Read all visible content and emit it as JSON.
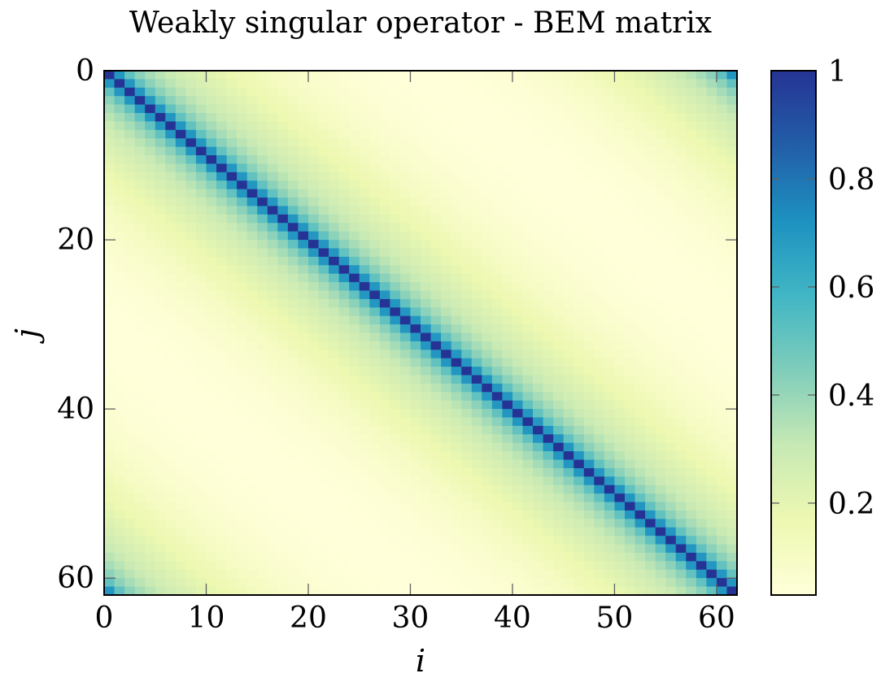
{
  "chart_data": {
    "type": "heatmap",
    "title": "Weakly singular operator - BEM matrix",
    "xlabel": "i",
    "ylabel": "j",
    "xlim": [
      0,
      62
    ],
    "ylim": [
      0,
      62
    ],
    "y_inverted": true,
    "n": 62,
    "xticks": [
      0,
      10,
      20,
      30,
      40,
      50,
      60
    ],
    "yticks": [
      0,
      20,
      40,
      60
    ],
    "x_tick_labels": [
      "0",
      "10",
      "20",
      "30",
      "40",
      "50",
      "60"
    ],
    "y_tick_labels": [
      "0",
      "20",
      "40",
      "60"
    ],
    "colorbar": {
      "min": 0.03,
      "max": 1,
      "ticks": [
        0.2,
        0.4,
        0.6,
        0.8,
        1
      ],
      "tick_labels": [
        "0.2",
        "0.4",
        "0.6",
        "0.8",
        "1"
      ],
      "placement": "right",
      "colormap": "YlGnBu",
      "colors": [
        "#ffffd9",
        "#edf8b1",
        "#c7e9b4",
        "#7fcdbb",
        "#41b6c4",
        "#1d91c0",
        "#225ea8",
        "#253494"
      ]
    },
    "pattern": "values decay with periodic distance |i - j| (mod 62); diagonal value 1, far-off-diagonal about 0.03",
    "values_by_periodic_distance": [
      1.0,
      0.7,
      0.51,
      0.42,
      0.37,
      0.33,
      0.3,
      0.27,
      0.25,
      0.23,
      0.21,
      0.19,
      0.17,
      0.155,
      0.14,
      0.125,
      0.11,
      0.1,
      0.09,
      0.08,
      0.07,
      0.062,
      0.055,
      0.049,
      0.044,
      0.04,
      0.037,
      0.034,
      0.032,
      0.031,
      0.03,
      0.03
    ],
    "grid": false
  }
}
